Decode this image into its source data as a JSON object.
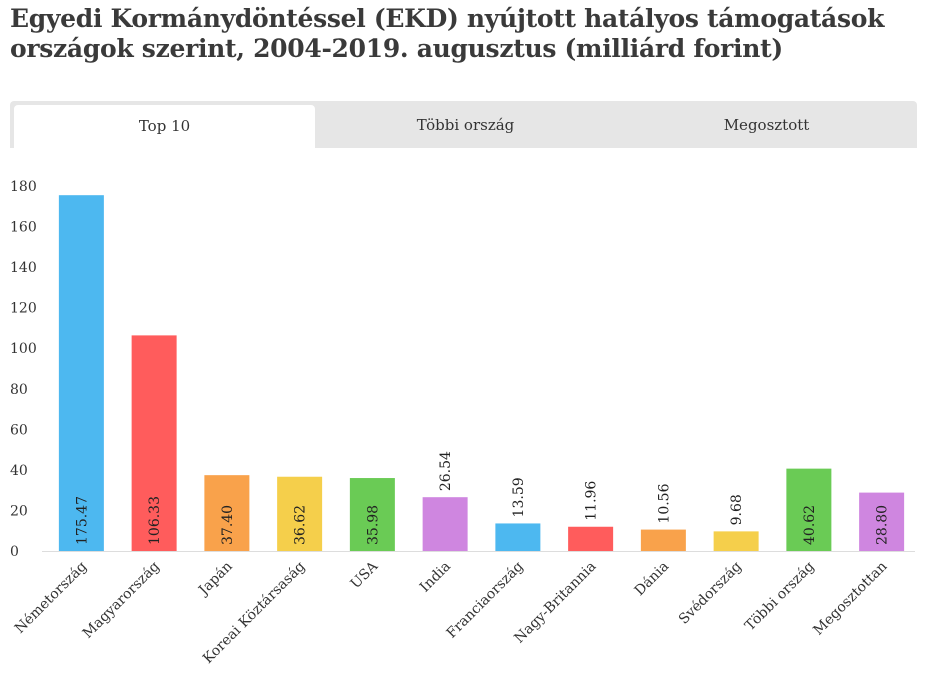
{
  "title": "Egyedi Kormánydöntéssel (EKD) nyújtott hatályos támogatások országok szerint, 2004-2019. augusztus (milliárd forint)",
  "tabs": [
    {
      "label": "Top 10",
      "active": true
    },
    {
      "label": "Többi ország",
      "active": false
    },
    {
      "label": "Megosztott",
      "active": false
    }
  ],
  "chart_data": {
    "type": "bar",
    "categories": [
      "Németország",
      "Magyarország",
      "Japán",
      "Koreai Köztársaság",
      "USA",
      "India",
      "Franciaország",
      "Nagy-Britannia",
      "Dánia",
      "Svédország",
      "Többi ország",
      "Megosztottan"
    ],
    "values": [
      175.47,
      106.33,
      37.4,
      36.62,
      35.98,
      26.54,
      13.59,
      11.96,
      10.56,
      9.68,
      40.62,
      28.8
    ],
    "value_labels": [
      "175.47",
      "106.33",
      "37.40",
      "36.62",
      "35.98",
      "26.54",
      "13.59",
      "11.96",
      "10.56",
      "9.68",
      "40.62",
      "28.80"
    ],
    "colors": [
      "#4db8f0",
      "#ff5c5c",
      "#f9a24b",
      "#f5cf4b",
      "#6acb55",
      "#cf86e0",
      "#4db8f0",
      "#ff5c5c",
      "#f9a24b",
      "#f5cf4b",
      "#6acb55",
      "#cf86e0"
    ],
    "y_ticks": [
      "0",
      "20",
      "40",
      "60",
      "80",
      "100",
      "120",
      "140",
      "160",
      "180"
    ],
    "ylim": [
      0,
      180
    ],
    "y_label_top": 180,
    "grid": false,
    "legend": "none"
  }
}
